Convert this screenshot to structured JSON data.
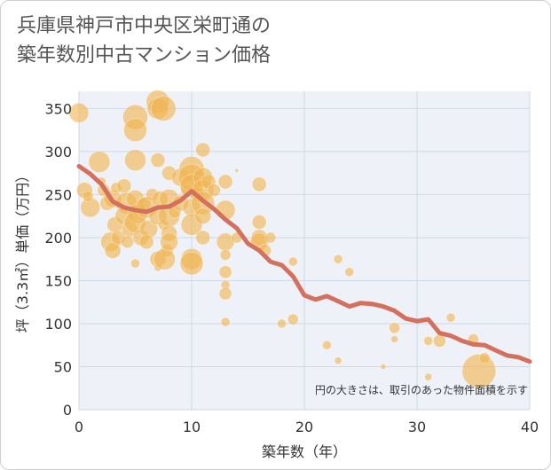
{
  "title_line1": "兵庫県神戸市中央区栄町通の",
  "title_line2": "築年数別中古マンション価格",
  "colors": {
    "bubble": "#f0b450",
    "line": "#d4705e",
    "grid": "#cfd8e6",
    "plot_bg": "#eef2f8"
  },
  "chart_data": {
    "type": "scatter",
    "xlabel": "築年数（年）",
    "ylabel": "坪（3.3㎡）単価（万円）",
    "xlim": [
      0,
      40
    ],
    "ylim": [
      0,
      370
    ],
    "xticks": [
      0,
      10,
      20,
      30,
      40
    ],
    "yticks": [
      0,
      50,
      100,
      150,
      200,
      250,
      300,
      350
    ],
    "grid": true,
    "note": "円の大きさは、取引のあった物件面積を示す",
    "bubbles": [
      {
        "x": 0,
        "y": 345,
        "s": 11
      },
      {
        "x": 0.5,
        "y": 255,
        "s": 9
      },
      {
        "x": 1,
        "y": 235,
        "s": 11
      },
      {
        "x": 0.8,
        "y": 248,
        "s": 6
      },
      {
        "x": 1.8,
        "y": 288,
        "s": 12
      },
      {
        "x": 2,
        "y": 265,
        "s": 5
      },
      {
        "x": 2.5,
        "y": 240,
        "s": 8
      },
      {
        "x": 2.2,
        "y": 255,
        "s": 7
      },
      {
        "x": 3,
        "y": 245,
        "s": 10
      },
      {
        "x": 3.3,
        "y": 258,
        "s": 6
      },
      {
        "x": 3.2,
        "y": 215,
        "s": 9
      },
      {
        "x": 2.8,
        "y": 195,
        "s": 11
      },
      {
        "x": 3,
        "y": 185,
        "s": 9
      },
      {
        "x": 3.5,
        "y": 200,
        "s": 8
      },
      {
        "x": 4,
        "y": 260,
        "s": 8
      },
      {
        "x": 4.2,
        "y": 240,
        "s": 12
      },
      {
        "x": 4,
        "y": 225,
        "s": 10
      },
      {
        "x": 4.5,
        "y": 210,
        "s": 9
      },
      {
        "x": 4.3,
        "y": 195,
        "s": 7
      },
      {
        "x": 5,
        "y": 340,
        "s": 14
      },
      {
        "x": 5,
        "y": 325,
        "s": 13
      },
      {
        "x": 5,
        "y": 290,
        "s": 12
      },
      {
        "x": 5,
        "y": 245,
        "s": 10
      },
      {
        "x": 5.2,
        "y": 228,
        "s": 11
      },
      {
        "x": 5,
        "y": 218,
        "s": 12
      },
      {
        "x": 5.5,
        "y": 200,
        "s": 9
      },
      {
        "x": 5,
        "y": 170,
        "s": 5
      },
      {
        "x": 5.8,
        "y": 240,
        "s": 7
      },
      {
        "x": 6,
        "y": 235,
        "s": 12
      },
      {
        "x": 6.2,
        "y": 210,
        "s": 10
      },
      {
        "x": 6,
        "y": 195,
        "s": 8
      },
      {
        "x": 6.5,
        "y": 250,
        "s": 7
      },
      {
        "x": 7,
        "y": 358,
        "s": 13
      },
      {
        "x": 7,
        "y": 350,
        "s": 12
      },
      {
        "x": 7.5,
        "y": 350,
        "s": 14
      },
      {
        "x": 7,
        "y": 290,
        "s": 8
      },
      {
        "x": 7.2,
        "y": 245,
        "s": 9
      },
      {
        "x": 7,
        "y": 225,
        "s": 10
      },
      {
        "x": 7.5,
        "y": 215,
        "s": 6
      },
      {
        "x": 7,
        "y": 175,
        "s": 9
      },
      {
        "x": 7,
        "y": 165,
        "s": 4
      },
      {
        "x": 7.8,
        "y": 185,
        "s": 7
      },
      {
        "x": 7.6,
        "y": 175,
        "s": 12
      },
      {
        "x": 8,
        "y": 275,
        "s": 8
      },
      {
        "x": 8,
        "y": 245,
        "s": 11
      },
      {
        "x": 8,
        "y": 225,
        "s": 12
      },
      {
        "x": 8,
        "y": 205,
        "s": 9
      },
      {
        "x": 8,
        "y": 195,
        "s": 10
      },
      {
        "x": 8.5,
        "y": 230,
        "s": 7
      },
      {
        "x": 9,
        "y": 270,
        "s": 10
      },
      {
        "x": 9,
        "y": 240,
        "s": 9
      },
      {
        "x": 9.5,
        "y": 255,
        "s": 6
      },
      {
        "x": 10,
        "y": 280,
        "s": 14
      },
      {
        "x": 10,
        "y": 270,
        "s": 15
      },
      {
        "x": 10,
        "y": 260,
        "s": 13
      },
      {
        "x": 10,
        "y": 235,
        "s": 10
      },
      {
        "x": 10,
        "y": 215,
        "s": 12
      },
      {
        "x": 10,
        "y": 175,
        "s": 12
      },
      {
        "x": 10,
        "y": 170,
        "s": 13
      },
      {
        "x": 10.5,
        "y": 250,
        "s": 8
      },
      {
        "x": 11,
        "y": 302,
        "s": 8
      },
      {
        "x": 11,
        "y": 270,
        "s": 11
      },
      {
        "x": 11,
        "y": 255,
        "s": 12
      },
      {
        "x": 11,
        "y": 240,
        "s": 13
      },
      {
        "x": 11,
        "y": 225,
        "s": 9
      },
      {
        "x": 11,
        "y": 200,
        "s": 8
      },
      {
        "x": 11.5,
        "y": 265,
        "s": 8
      },
      {
        "x": 12,
        "y": 255,
        "s": 7
      },
      {
        "x": 13,
        "y": 265,
        "s": 8
      },
      {
        "x": 13,
        "y": 232,
        "s": 11
      },
      {
        "x": 13,
        "y": 195,
        "s": 10
      },
      {
        "x": 13,
        "y": 180,
        "s": 6
      },
      {
        "x": 13,
        "y": 160,
        "s": 7
      },
      {
        "x": 13,
        "y": 145,
        "s": 5
      },
      {
        "x": 13,
        "y": 135,
        "s": 7
      },
      {
        "x": 13,
        "y": 102,
        "s": 5
      },
      {
        "x": 14,
        "y": 200,
        "s": 6
      },
      {
        "x": 14,
        "y": 278,
        "s": 2
      },
      {
        "x": 16,
        "y": 262,
        "s": 8
      },
      {
        "x": 16,
        "y": 218,
        "s": 8
      },
      {
        "x": 16,
        "y": 200,
        "s": 9
      },
      {
        "x": 16,
        "y": 195,
        "s": 10
      },
      {
        "x": 16.5,
        "y": 185,
        "s": 7
      },
      {
        "x": 17,
        "y": 200,
        "s": 6
      },
      {
        "x": 18,
        "y": 100,
        "s": 5
      },
      {
        "x": 19,
        "y": 172,
        "s": 5
      },
      {
        "x": 19,
        "y": 105,
        "s": 6
      },
      {
        "x": 22,
        "y": 75,
        "s": 5
      },
      {
        "x": 23,
        "y": 175,
        "s": 5
      },
      {
        "x": 23,
        "y": 57,
        "s": 4
      },
      {
        "x": 24,
        "y": 160,
        "s": 5
      },
      {
        "x": 27,
        "y": 50,
        "s": 3
      },
      {
        "x": 28,
        "y": 95,
        "s": 6
      },
      {
        "x": 28,
        "y": 82,
        "s": 4
      },
      {
        "x": 31,
        "y": 80,
        "s": 5
      },
      {
        "x": 31,
        "y": 38,
        "s": 4
      },
      {
        "x": 32,
        "y": 80,
        "s": 7
      },
      {
        "x": 33,
        "y": 107,
        "s": 5
      },
      {
        "x": 35,
        "y": 82,
        "s": 6
      },
      {
        "x": 35.5,
        "y": 45,
        "s": 19
      },
      {
        "x": 36,
        "y": 60,
        "s": 6
      }
    ],
    "series": [
      {
        "x": [
          0,
          1,
          2,
          3,
          4,
          5,
          6,
          7,
          8,
          9,
          10,
          11,
          12,
          13,
          14,
          15,
          16,
          17,
          18,
          19,
          20,
          21,
          22,
          23,
          24,
          25,
          26,
          27,
          28,
          29,
          30,
          31,
          32,
          33,
          34,
          35,
          36,
          37,
          38,
          39,
          40
        ],
        "values": [
          283,
          274,
          262,
          242,
          235,
          232,
          230,
          235,
          236,
          243,
          254,
          243,
          233,
          221,
          211,
          193,
          185,
          172,
          168,
          155,
          133,
          128,
          132,
          126,
          120,
          124,
          123,
          120,
          115,
          106,
          103,
          105,
          89,
          86,
          80,
          76,
          75,
          69,
          63,
          61,
          56
        ]
      }
    ]
  }
}
